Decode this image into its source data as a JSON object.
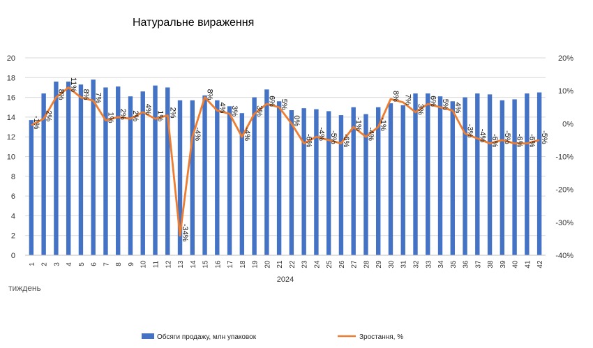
{
  "chart_data": {
    "type": "bar",
    "title": "Натуральне вираження",
    "xlabel": "тиждень",
    "x_group_label": "2024",
    "categories": [
      "1",
      "2",
      "3",
      "4",
      "5",
      "6",
      "7",
      "8",
      "9",
      "10",
      "11",
      "12",
      "13",
      "14",
      "15",
      "16",
      "17",
      "18",
      "19",
      "20",
      "21",
      "22",
      "23",
      "24",
      "25",
      "26",
      "27",
      "28",
      "29",
      "30",
      "31",
      "32",
      "33",
      "34",
      "35",
      "36",
      "37",
      "38",
      "39",
      "40",
      "41",
      "42"
    ],
    "series": [
      {
        "name": "Обсяги продажу, млн упаковок",
        "type": "bar",
        "axis": "left",
        "color": "#4472C4",
        "values": [
          13.7,
          16.4,
          17.6,
          17.6,
          17.3,
          17.8,
          17.0,
          17.1,
          16.1,
          16.6,
          17.2,
          17.0,
          15.7,
          15.7,
          16.2,
          15.7,
          15.1,
          14.4,
          16.0,
          16.8,
          15.6,
          14.7,
          14.9,
          14.8,
          14.6,
          14.2,
          15.0,
          14.3,
          15.0,
          15.4,
          15.2,
          16.4,
          16.4,
          16.1,
          15.6,
          16.0,
          16.4,
          16.3,
          15.7,
          15.8,
          16.4,
          16.5
        ]
      },
      {
        "name": "Зростання, %",
        "type": "line",
        "axis": "right",
        "color": "#ED7D31",
        "values": [
          -0.5,
          1.5,
          8.0,
          11.0,
          8.0,
          7.0,
          1.0,
          2.0,
          1.5,
          3.5,
          1.5,
          2.5,
          -34.0,
          -4.0,
          8.0,
          4.0,
          3.0,
          -4.0,
          3.0,
          6.0,
          5.0,
          0.0,
          -6.0,
          -4.0,
          -5.0,
          -6.0,
          -1.0,
          -4.0,
          -1.0,
          7.5,
          6.5,
          3.5,
          6.0,
          5.0,
          4.0,
          -3.0,
          -4.5,
          -6.0,
          -5.0,
          -6.0,
          -6.0,
          -5.0
        ],
        "labels": [
          "-1%",
          "2%",
          "8%",
          "11%",
          "8%",
          "7%",
          "1%",
          "2%",
          "2%",
          "4%",
          "1%",
          "2%",
          "-34%",
          "-4%",
          "8%",
          "4%",
          "3%",
          "-4%",
          "3%",
          "6%",
          "5%",
          "0%",
          "-6%",
          "-4%",
          "-5%",
          "-6%",
          "-1%",
          "-4%",
          "-1%",
          "8%",
          "7%",
          "3%",
          "6%",
          "5%",
          "4%",
          "-3%",
          "-4%",
          "-6%",
          "-5%",
          "-6%",
          "-6%",
          "-5%"
        ]
      }
    ],
    "y_left": {
      "min": 0,
      "max": 20,
      "step": 2,
      "ticks": [
        "0",
        "2",
        "4",
        "6",
        "8",
        "10",
        "12",
        "14",
        "16",
        "18",
        "20"
      ]
    },
    "y_right": {
      "min": -40,
      "max": 20,
      "step": 10,
      "ticks": [
        "-40%",
        "-30%",
        "-20%",
        "-10%",
        "0%",
        "10%",
        "20%"
      ]
    },
    "grid": true,
    "legend_position": "bottom"
  }
}
